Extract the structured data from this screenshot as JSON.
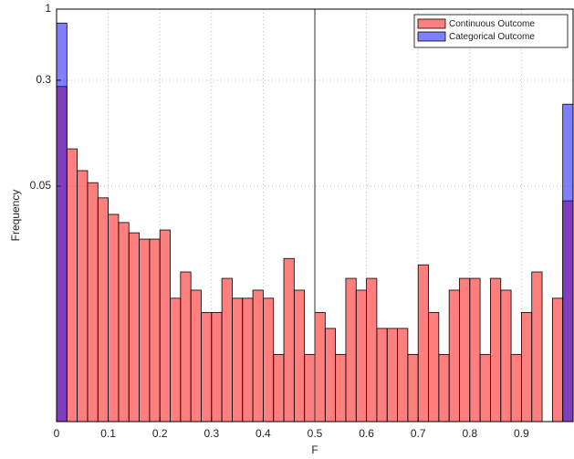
{
  "chart_data": {
    "type": "histogram",
    "x_label": "F",
    "y_label": "Frequency",
    "bins": [
      0,
      0.02,
      0.04,
      0.06,
      0.08,
      0.1,
      0.12,
      0.14,
      0.16,
      0.18,
      0.2,
      0.22,
      0.24,
      0.26,
      0.28,
      0.3,
      0.32,
      0.34,
      0.36,
      0.38,
      0.4,
      0.42,
      0.44,
      0.46,
      0.48,
      0.5,
      0.52,
      0.54,
      0.56,
      0.58,
      0.6,
      0.62,
      0.64,
      0.66,
      0.68,
      0.7,
      0.72,
      0.74,
      0.76,
      0.78,
      0.8,
      0.82,
      0.84,
      0.86,
      0.88,
      0.9,
      0.92,
      0.94,
      0.96,
      0.98,
      1
    ],
    "series": [
      {
        "name": "Continuous Outcome",
        "color": "#ff0000",
        "values": [
          0.27,
          0.094,
          0.065,
          0.053,
          0.041,
          0.031,
          0.027,
          0.0227,
          0.0204,
          0.0204,
          0.0238,
          0.0075,
          0.0117,
          0.0086,
          0.0059,
          0.0059,
          0.0105,
          0.0075,
          0.0075,
          0.0086,
          0.0075,
          0.0029,
          0.0147,
          0.0086,
          0.0029,
          0.0059,
          0.0045,
          0.0029,
          0.0105,
          0.0086,
          0.0105,
          0.0045,
          0.0045,
          0.0045,
          0.0029,
          0.0132,
          0.0059,
          0.0029,
          0.0086,
          0.0105,
          0.0105,
          0.0029,
          0.0105,
          0.0086,
          0.0029,
          0.0059,
          0.0117,
          0,
          0.0075,
          0.039
        ]
      },
      {
        "name": "Categorical Outcome",
        "color": "#0000ff",
        "values": [
          0.79,
          0,
          0,
          0,
          0,
          0,
          0,
          0,
          0,
          0,
          0,
          0,
          0,
          0,
          0,
          0,
          0,
          0,
          0,
          0,
          0,
          0,
          0,
          0,
          0,
          0,
          0,
          0,
          0,
          0,
          0,
          0,
          0,
          0,
          0,
          0,
          0,
          0,
          0,
          0,
          0,
          0,
          0,
          0,
          0,
          0,
          0,
          0,
          0,
          0.2
        ]
      }
    ],
    "opacity": 0.5,
    "xlim": [
      0,
      1
    ],
    "xticks": [
      0,
      0.1,
      0.2,
      0.3,
      0.4,
      0.5,
      0.6,
      0.7,
      0.8,
      0.9
    ],
    "ylim": [
      0.00093,
      1
    ],
    "yticks": [
      0.05,
      0.3,
      1
    ],
    "log_y": true,
    "grid": true,
    "vline": 0.5,
    "legend": "northeast"
  }
}
